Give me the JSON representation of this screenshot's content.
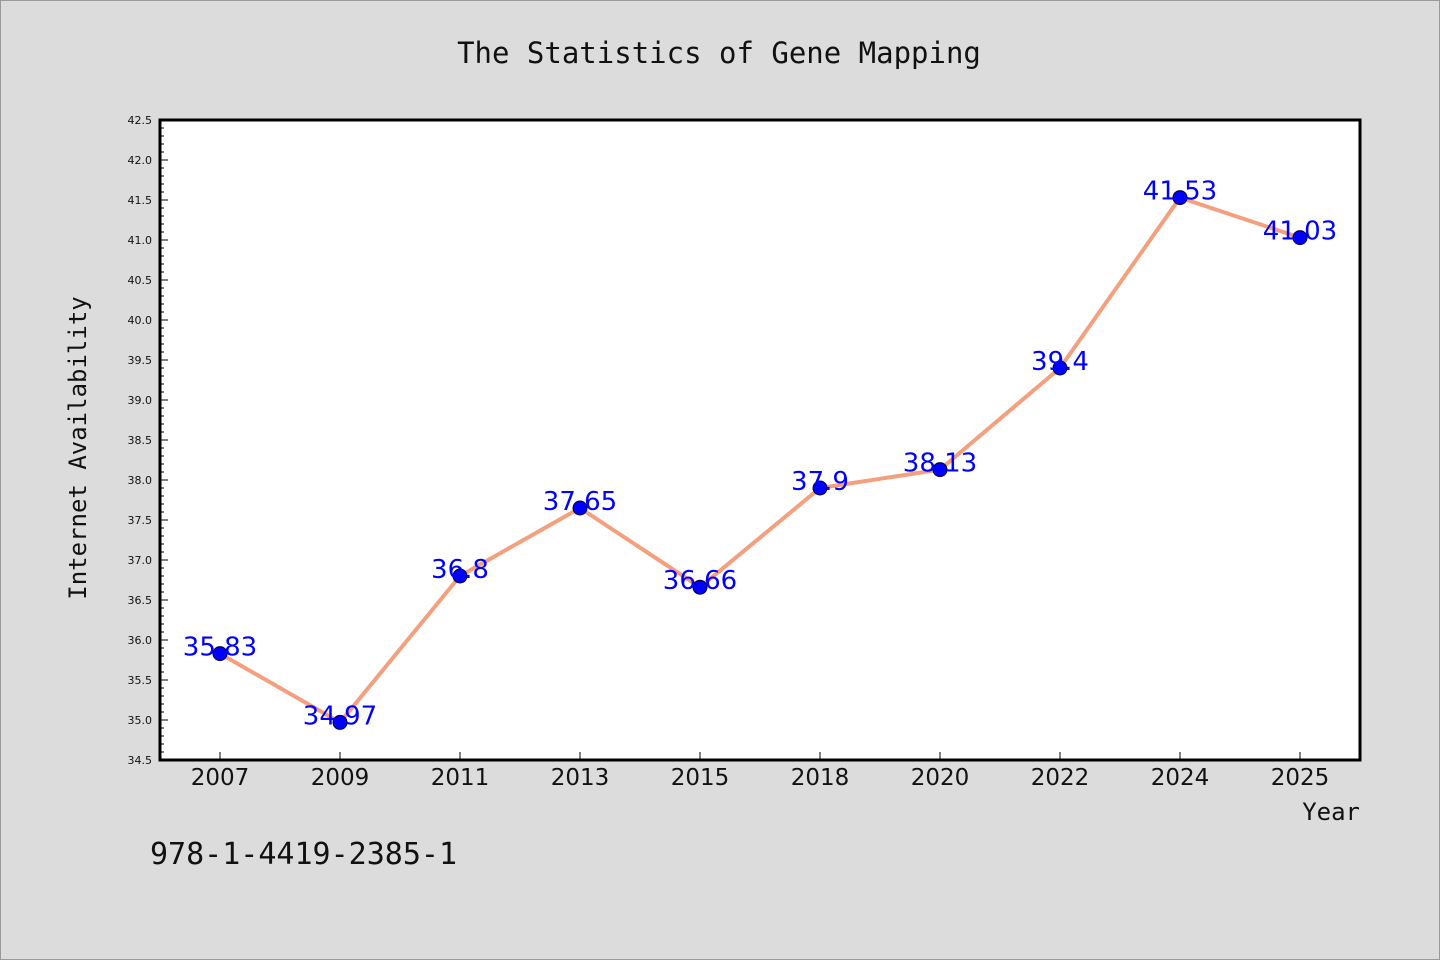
{
  "chart_data": {
    "type": "line",
    "title": "The Statistics of Gene Mapping",
    "xlabel": "Year",
    "ylabel": "Internet Availability",
    "categories": [
      "2007",
      "2009",
      "2011",
      "2013",
      "2015",
      "2018",
      "2020",
      "2022",
      "2024",
      "2025"
    ],
    "values": [
      35.83,
      34.97,
      36.8,
      37.65,
      36.66,
      37.9,
      38.13,
      39.4,
      41.53,
      41.03
    ],
    "data_labels": [
      "35.83",
      "34.97",
      "36.8",
      "37.65",
      "36.66",
      "37.9",
      "38.13",
      "39.4",
      "41.53",
      "41.03"
    ],
    "ylim": [
      34.5,
      42.5
    ],
    "yticks": [
      "34.5",
      "35.0",
      "35.5",
      "36.0",
      "36.5",
      "37.0",
      "37.5",
      "38.0",
      "38.5",
      "39.0",
      "39.5",
      "40.0",
      "40.5",
      "41.0",
      "41.5",
      "42.0",
      "42.5"
    ],
    "grid": false,
    "line_color": "#f4a07f",
    "marker_color": "#0000ff",
    "label_color": "#0000ff",
    "background_color": "#dcdcdc",
    "plot_background": "#ffffff"
  },
  "footer": {
    "isbn": "978-1-4419-2385-1"
  }
}
